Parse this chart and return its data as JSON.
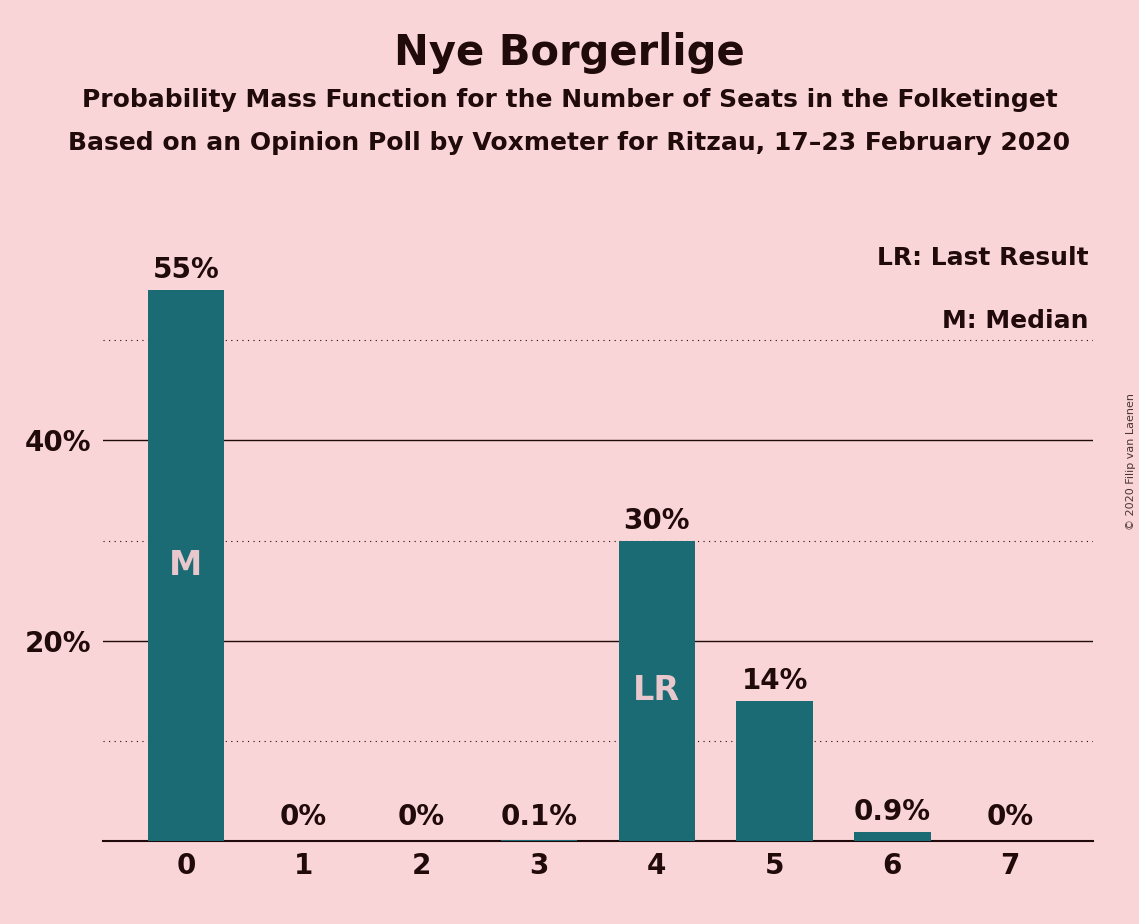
{
  "title": "Nye Borgerlige",
  "subtitle1": "Probability Mass Function for the Number of Seats in the Folketinget",
  "subtitle2": "Based on an Opinion Poll by Voxmeter for Ritzau, 17–23 February 2020",
  "watermark": "© 2020 Filip van Laenen",
  "legend_line1": "LR: Last Result",
  "legend_line2": "M: Median",
  "categories": [
    0,
    1,
    2,
    3,
    4,
    5,
    6,
    7
  ],
  "values": [
    55.0,
    0.0,
    0.0,
    0.1,
    30.0,
    14.0,
    0.9,
    0.0
  ],
  "bar_labels": [
    "55%",
    "0%",
    "0%",
    "0.1%",
    "30%",
    "14%",
    "0.9%",
    "0%"
  ],
  "bar_color": "#1a6b73",
  "background_color": "#f9d5d8",
  "text_color": "#200a0a",
  "label_inside_color": "#e8c8cc",
  "bar_annotations": [
    {
      "bar": 0,
      "text": "M"
    },
    {
      "bar": 4,
      "text": "LR"
    }
  ],
  "yticks_solid": [
    20,
    40
  ],
  "yticks_dotted": [
    10,
    30,
    50
  ],
  "ylim": [
    0,
    60
  ],
  "title_fontsize": 30,
  "subtitle_fontsize": 18,
  "axis_tick_fontsize": 20,
  "bar_label_fontsize": 20,
  "annotation_fontsize": 24,
  "legend_fontsize": 18,
  "watermark_fontsize": 8
}
